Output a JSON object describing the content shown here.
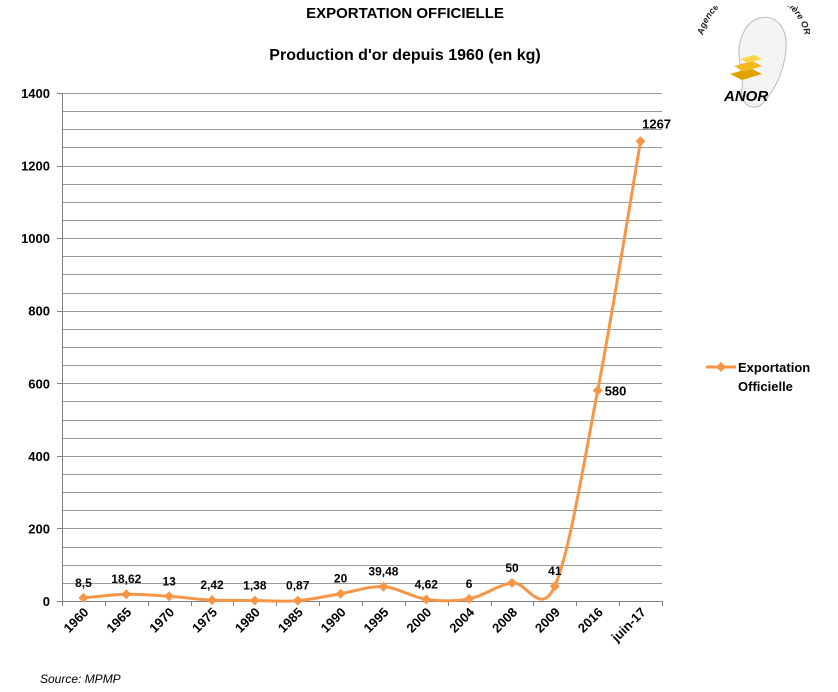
{
  "logo": {
    "org_name": "Agence Nationale de la filière OR",
    "acronym": "ANOR"
  },
  "source": "Source: MPMP",
  "chart_data": {
    "type": "line",
    "title": "EXPORTATION OFFICIELLE",
    "subtitle": "Production d'or depuis 1960 (en kg)",
    "xlabel": "",
    "ylabel": "",
    "categories": [
      "1960",
      "1965",
      "1970",
      "1975",
      "1980",
      "1985",
      "1990",
      "1995",
      "2000",
      "2004",
      "2008",
      "2009",
      "2016",
      "juin-17"
    ],
    "series": [
      {
        "name": "Exportation Officielle",
        "color": "#F79646",
        "values": [
          8.5,
          18.62,
          13,
          2.42,
          1.38,
          0.87,
          20,
          39.48,
          4.62,
          6,
          50,
          41,
          580,
          1267
        ],
        "data_labels": [
          "8,5",
          "18,62",
          "13",
          "2,42",
          "1,38",
          "0,87",
          "20",
          "39,48",
          "4,62",
          "6",
          "50",
          "41",
          "580",
          "1267"
        ]
      }
    ],
    "ylim": [
      0,
      1400
    ],
    "yticks": [
      0,
      200,
      400,
      600,
      800,
      1000,
      1200,
      1400
    ],
    "ytick_labels": [
      "0",
      "200",
      "400",
      "600",
      "800",
      "1000",
      "1200",
      "1400"
    ],
    "grid_step": 50,
    "grid": true,
    "smooth": true,
    "marker": "diamond",
    "legend_position": "right"
  }
}
